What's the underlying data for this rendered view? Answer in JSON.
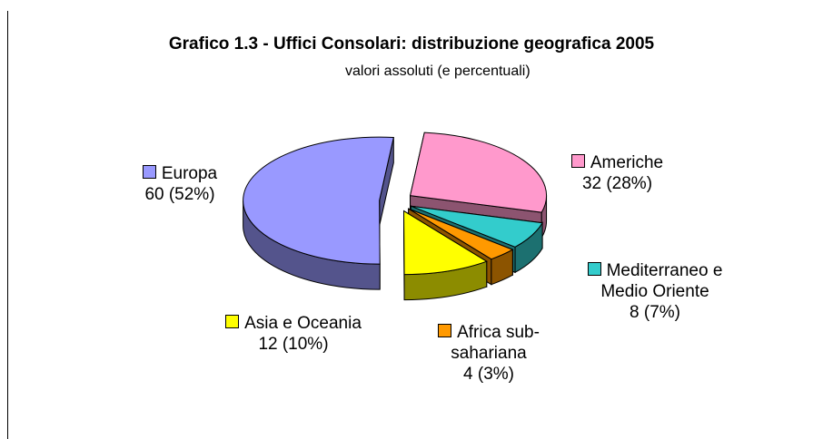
{
  "chart_data": {
    "type": "pie",
    "title": "Grafico 1.3 - Uffici Consolari: distribuzione geografica 2005",
    "subtitle": "valori assoluti (e percentuali)",
    "categories": [
      "Americhe",
      "Mediterraneo e Medio Oriente",
      "Africa sub-sahariana",
      "Asia e Oceania",
      "Europa"
    ],
    "values": [
      32,
      8,
      4,
      12,
      60
    ],
    "value_labels": [
      "32 (28%)",
      "8 (7%)",
      "4 (3%)",
      "12 (10%)",
      "60 (52%)"
    ],
    "colors": [
      "#ff99cc",
      "#33cccc",
      "#ff9900",
      "#ffff00",
      "#9999ff"
    ]
  }
}
